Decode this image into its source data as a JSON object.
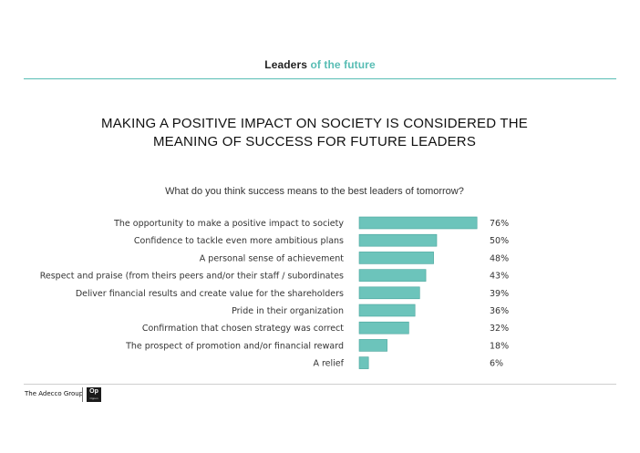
{
  "header": {
    "part1": "Leaders",
    "part2": "of the future"
  },
  "headline": {
    "line1": "MAKING A POSITIVE IMPACT ON SOCIETY IS CONSIDERED THE",
    "line2": "MEANING OF SUCCESS FOR FUTURE LEADERS"
  },
  "question": "What do you think success means to the best leaders of tomorrow?",
  "colors": {
    "accent": "#58bdb4",
    "bar": "#6cc4bb",
    "bar_edge": "#4aa59c"
  },
  "chart_data": {
    "type": "bar",
    "orientation": "horizontal",
    "categories": [
      "The opportunity to make a positive impact to society",
      "Confidence to tackle even more ambitious plans",
      "A personal sense of achievement",
      "Respect and praise (from theirs peers and/or their staff / subordinates",
      "Deliver financial results and create value for the shareholders",
      "Pride in their organization",
      "Confirmation that chosen strategy was correct",
      "The prospect of promotion and/or financial reward",
      "A relief"
    ],
    "values": [
      76,
      50,
      48,
      43,
      39,
      36,
      32,
      18,
      6
    ],
    "value_labels": [
      "76%",
      "50%",
      "48%",
      "43%",
      "39%",
      "36%",
      "32%",
      "18%",
      "6%"
    ],
    "xlim": [
      0,
      100
    ],
    "grid": false,
    "legend": "none"
  },
  "footer": {
    "brand": "The Adecco Group",
    "logo_text": "Op",
    "logo_subtext": "Oppon"
  }
}
